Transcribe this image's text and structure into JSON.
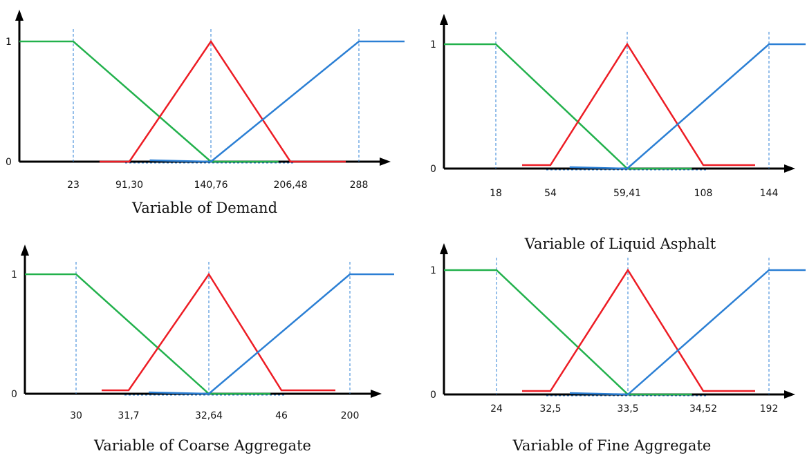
{
  "colors": {
    "low": "#22b14c",
    "mid": "#ed1c24",
    "high": "#2b7fd4",
    "axis": "#000000",
    "guide": "#2b7fd4"
  },
  "chart_data": [
    {
      "type": "line",
      "title": "Variable of Demand",
      "y_ticks": [
        "0",
        "1"
      ],
      "x_ticks": [
        "23",
        "91,30",
        "140,76",
        "206,48",
        "288"
      ],
      "series": [
        {
          "values": [
            1,
            1,
            0,
            0
          ]
        },
        {
          "values": [
            0,
            0,
            1,
            0,
            0
          ]
        },
        {
          "values": [
            0,
            0,
            1,
            1
          ]
        }
      ]
    },
    {
      "type": "line",
      "title": "Variable of Liquid Asphalt",
      "y_ticks": [
        "0",
        "1"
      ],
      "x_ticks": [
        "18",
        "54",
        "59,41",
        "108",
        "144"
      ],
      "series": [
        {
          "values": [
            1,
            1,
            0,
            0
          ]
        },
        {
          "values": [
            0,
            0,
            1,
            0,
            0
          ]
        },
        {
          "values": [
            0,
            0,
            1,
            1
          ]
        }
      ]
    },
    {
      "type": "line",
      "title": "Variable of Coarse Aggregate",
      "y_ticks": [
        "0",
        "1"
      ],
      "x_ticks": [
        "30",
        "31,7",
        "32,64",
        "46",
        "200"
      ],
      "series": [
        {
          "values": [
            1,
            1,
            0,
            0
          ]
        },
        {
          "values": [
            0,
            0,
            1,
            0,
            0
          ]
        },
        {
          "values": [
            0,
            0,
            1,
            1
          ]
        }
      ]
    },
    {
      "type": "line",
      "title": "Variable of Fine Aggregate",
      "y_ticks": [
        "0",
        "1"
      ],
      "x_ticks": [
        "24",
        "32,5",
        "33,5",
        "34,52",
        "192"
      ],
      "series": [
        {
          "values": [
            1,
            1,
            0,
            0
          ]
        },
        {
          "values": [
            0,
            0,
            1,
            0,
            0
          ]
        },
        {
          "values": [
            0,
            0,
            1,
            1
          ]
        }
      ]
    }
  ]
}
